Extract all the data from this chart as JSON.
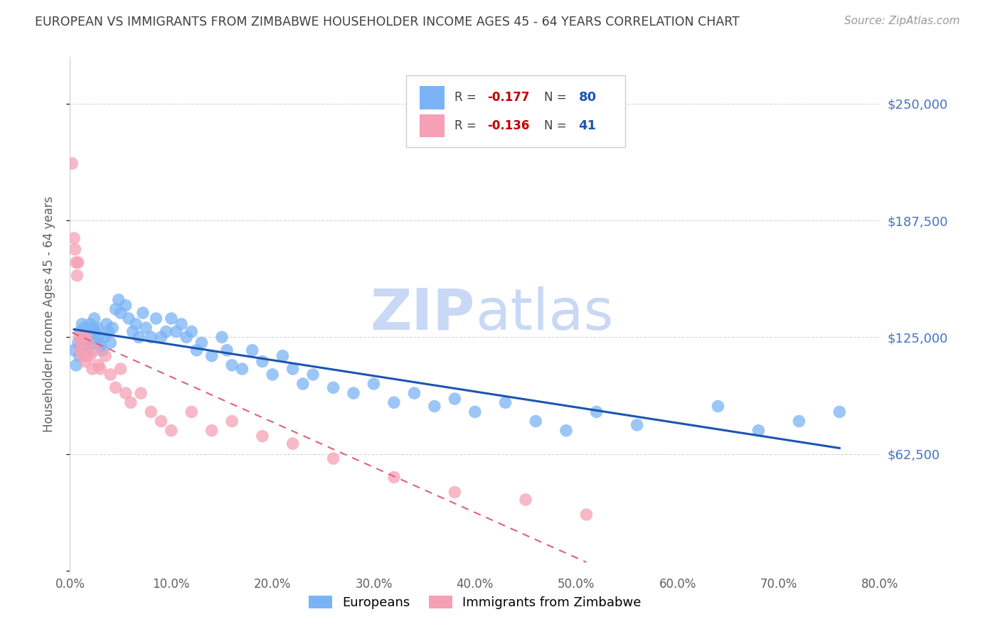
{
  "title": "EUROPEAN VS IMMIGRANTS FROM ZIMBABWE HOUSEHOLDER INCOME AGES 45 - 64 YEARS CORRELATION CHART",
  "source": "Source: ZipAtlas.com",
  "ylabel": "Householder Income Ages 45 - 64 years",
  "xlim": [
    0.0,
    0.8
  ],
  "ylim": [
    0,
    275000
  ],
  "yticks": [
    0,
    62500,
    125000,
    187500,
    250000
  ],
  "ytick_labels": [
    "",
    "$62,500",
    "$125,000",
    "$187,500",
    "$250,000"
  ],
  "xticks": [
    0.0,
    0.1,
    0.2,
    0.3,
    0.4,
    0.5,
    0.6,
    0.7,
    0.8
  ],
  "europeans_color": "#7ab4f5",
  "zimbabwe_color": "#f5a0b5",
  "trendline_european_color": "#1a56b0",
  "trendline_zimbabwe_color": "#e06080",
  "background_color": "#ffffff",
  "watermark_color": "#c8d8f5",
  "title_color": "#404040",
  "axis_label_color": "#606060",
  "ytick_label_color": "#4472c4",
  "europeans_x": [
    0.004,
    0.006,
    0.008,
    0.009,
    0.01,
    0.011,
    0.012,
    0.013,
    0.014,
    0.015,
    0.016,
    0.017,
    0.018,
    0.019,
    0.02,
    0.021,
    0.022,
    0.023,
    0.024,
    0.025,
    0.026,
    0.027,
    0.028,
    0.03,
    0.032,
    0.034,
    0.036,
    0.038,
    0.04,
    0.042,
    0.045,
    0.048,
    0.05,
    0.055,
    0.058,
    0.062,
    0.065,
    0.068,
    0.072,
    0.075,
    0.08,
    0.085,
    0.09,
    0.095,
    0.1,
    0.105,
    0.11,
    0.115,
    0.12,
    0.125,
    0.13,
    0.14,
    0.15,
    0.155,
    0.16,
    0.17,
    0.18,
    0.19,
    0.2,
    0.21,
    0.22,
    0.23,
    0.24,
    0.26,
    0.28,
    0.3,
    0.32,
    0.34,
    0.36,
    0.38,
    0.4,
    0.43,
    0.46,
    0.49,
    0.52,
    0.56,
    0.64,
    0.68,
    0.72,
    0.76
  ],
  "europeans_y": [
    118000,
    110000,
    122000,
    115000,
    128000,
    120000,
    132000,
    125000,
    118000,
    130000,
    125000,
    122000,
    118000,
    125000,
    132000,
    128000,
    122000,
    130000,
    135000,
    128000,
    122000,
    130000,
    125000,
    120000,
    118000,
    125000,
    132000,
    128000,
    122000,
    130000,
    140000,
    145000,
    138000,
    142000,
    135000,
    128000,
    132000,
    125000,
    138000,
    130000,
    125000,
    135000,
    125000,
    128000,
    135000,
    128000,
    132000,
    125000,
    128000,
    118000,
    122000,
    115000,
    125000,
    118000,
    110000,
    108000,
    118000,
    112000,
    105000,
    115000,
    108000,
    100000,
    105000,
    98000,
    95000,
    100000,
    90000,
    95000,
    88000,
    92000,
    85000,
    90000,
    80000,
    75000,
    85000,
    78000,
    88000,
    75000,
    80000,
    85000
  ],
  "zimbabwe_x": [
    0.002,
    0.004,
    0.005,
    0.006,
    0.007,
    0.008,
    0.009,
    0.01,
    0.011,
    0.012,
    0.013,
    0.014,
    0.015,
    0.016,
    0.017,
    0.018,
    0.02,
    0.022,
    0.025,
    0.028,
    0.03,
    0.035,
    0.04,
    0.045,
    0.05,
    0.055,
    0.06,
    0.07,
    0.08,
    0.09,
    0.1,
    0.12,
    0.14,
    0.16,
    0.19,
    0.22,
    0.26,
    0.32,
    0.38,
    0.45,
    0.51
  ],
  "zimbabwe_y": [
    218000,
    178000,
    172000,
    165000,
    158000,
    165000,
    125000,
    118000,
    122000,
    115000,
    125000,
    118000,
    112000,
    125000,
    115000,
    122000,
    115000,
    108000,
    118000,
    110000,
    108000,
    115000,
    105000,
    98000,
    108000,
    95000,
    90000,
    95000,
    85000,
    80000,
    75000,
    85000,
    75000,
    80000,
    72000,
    68000,
    60000,
    50000,
    42000,
    38000,
    30000
  ]
}
